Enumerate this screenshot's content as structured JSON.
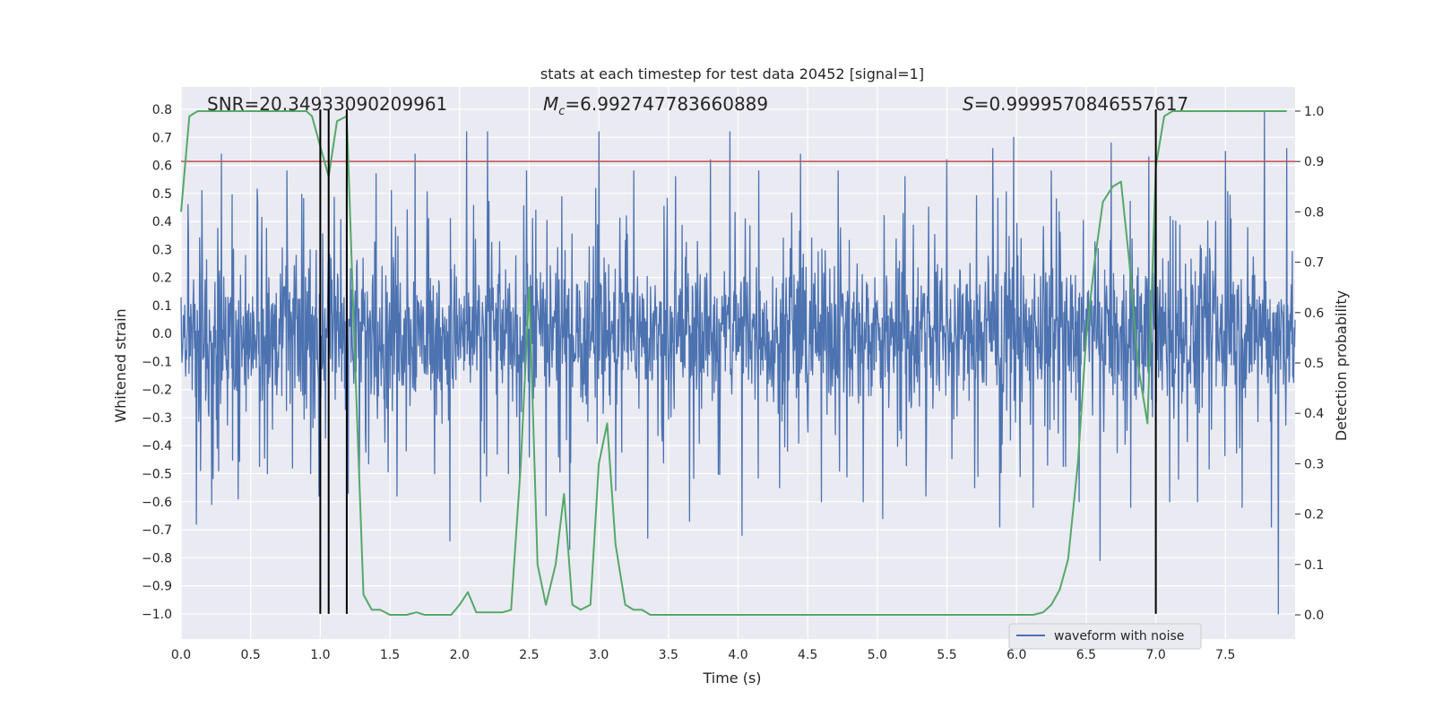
{
  "chart_data": {
    "type": "line",
    "title": "stats at each timestep for test data 20452 [signal=1]",
    "xlabel": "Time (s)",
    "ylabel": "Whitened strain",
    "y2label": "Detection probability",
    "xlim": [
      0.0,
      8.0
    ],
    "ylim": [
      -1.09,
      0.88
    ],
    "y2lim": [
      -0.048,
      1.048
    ],
    "xticks": [
      0.0,
      0.5,
      1.0,
      1.5,
      2.0,
      2.5,
      3.0,
      3.5,
      4.0,
      4.5,
      5.0,
      5.5,
      6.0,
      6.5,
      7.0,
      7.5
    ],
    "yticks": [
      0.8,
      0.7,
      0.6,
      0.5,
      0.4,
      0.3,
      0.2,
      0.1,
      0.0,
      -0.1,
      -0.2,
      -0.3,
      -0.4,
      -0.5,
      -0.6,
      -0.7,
      -0.8,
      -0.9,
      -1.0
    ],
    "y2ticks": [
      1.0,
      0.9,
      0.8,
      0.7,
      0.6,
      0.5,
      0.4,
      0.3,
      0.2,
      0.1,
      0.0
    ],
    "grid": true,
    "legend": {
      "position": "lower-right",
      "entries": [
        "waveform with noise"
      ]
    },
    "annotations": {
      "snr": "SNR=20.34933090209961",
      "mc_symbol": "M",
      "mc_sub": "c",
      "mc_value": "=6.992747783660889",
      "s_symbol": "S",
      "s_value": "=0.9999570846557617"
    },
    "threshold": {
      "y2": 0.9,
      "color": "#c44e52"
    },
    "vertical_lines": {
      "x": [
        1.0,
        1.06,
        1.19,
        7.0
      ],
      "ymin": -1.0,
      "ymax": 0.8,
      "color": "#000000"
    },
    "waveform": {
      "name": "waveform with noise",
      "color": "#4c72b0",
      "x_range": [
        0.0,
        8.0
      ],
      "typical_amplitude": 0.28,
      "spikes": [
        {
          "x": 0.05,
          "y": 0.46
        },
        {
          "x": 0.11,
          "y": -0.68
        },
        {
          "x": 0.15,
          "y": 0.51
        },
        {
          "x": 0.22,
          "y": -0.61
        },
        {
          "x": 0.29,
          "y": 0.64
        },
        {
          "x": 0.41,
          "y": -0.59
        },
        {
          "x": 0.55,
          "y": 0.47
        },
        {
          "x": 0.62,
          "y": -0.5
        },
        {
          "x": 0.76,
          "y": 0.58
        },
        {
          "x": 0.8,
          "y": -0.48
        },
        {
          "x": 0.93,
          "y": -0.5
        },
        {
          "x": 0.99,
          "y": -0.58
        },
        {
          "x": 1.2,
          "y": -0.57
        },
        {
          "x": 1.28,
          "y": -0.52
        },
        {
          "x": 1.4,
          "y": 0.57
        },
        {
          "x": 1.55,
          "y": -0.58
        },
        {
          "x": 1.68,
          "y": 0.64
        },
        {
          "x": 1.82,
          "y": -0.5
        },
        {
          "x": 1.93,
          "y": -0.74
        },
        {
          "x": 2.05,
          "y": 0.72
        },
        {
          "x": 2.15,
          "y": -0.6
        },
        {
          "x": 2.2,
          "y": 0.72
        },
        {
          "x": 2.35,
          "y": -0.5
        },
        {
          "x": 2.48,
          "y": 0.58
        },
        {
          "x": 2.62,
          "y": -0.65
        },
        {
          "x": 2.79,
          "y": -0.77
        },
        {
          "x": 3.0,
          "y": 0.72
        },
        {
          "x": 3.12,
          "y": -0.56
        },
        {
          "x": 3.25,
          "y": 0.58
        },
        {
          "x": 3.35,
          "y": -0.73
        },
        {
          "x": 3.55,
          "y": 0.56
        },
        {
          "x": 3.65,
          "y": -0.67
        },
        {
          "x": 3.8,
          "y": 0.62
        },
        {
          "x": 3.94,
          "y": 0.72
        },
        {
          "x": 4.03,
          "y": -0.72
        },
        {
          "x": 4.15,
          "y": 0.58
        },
        {
          "x": 4.3,
          "y": -0.55
        },
        {
          "x": 4.45,
          "y": 0.64
        },
        {
          "x": 4.6,
          "y": -0.6
        },
        {
          "x": 4.72,
          "y": 0.58
        },
        {
          "x": 4.9,
          "y": -0.6
        },
        {
          "x": 5.04,
          "y": -0.66
        },
        {
          "x": 5.2,
          "y": 0.56
        },
        {
          "x": 5.35,
          "y": -0.58
        },
        {
          "x": 5.5,
          "y": 0.62
        },
        {
          "x": 5.7,
          "y": -0.55
        },
        {
          "x": 5.83,
          "y": 0.66
        },
        {
          "x": 5.88,
          "y": -0.69
        },
        {
          "x": 5.98,
          "y": 0.7
        },
        {
          "x": 6.12,
          "y": -0.62
        },
        {
          "x": 6.25,
          "y": 0.58
        },
        {
          "x": 6.45,
          "y": -0.6
        },
        {
          "x": 6.6,
          "y": -0.81
        },
        {
          "x": 6.68,
          "y": 0.68
        },
        {
          "x": 6.82,
          "y": -0.62
        },
        {
          "x": 6.95,
          "y": 0.63
        },
        {
          "x": 7.1,
          "y": -0.6
        },
        {
          "x": 7.3,
          "y": -0.6
        },
        {
          "x": 7.5,
          "y": 0.65
        },
        {
          "x": 7.62,
          "y": -0.62
        },
        {
          "x": 7.78,
          "y": 0.79
        },
        {
          "x": 7.83,
          "y": -0.69
        },
        {
          "x": 7.88,
          "y": -1.0
        },
        {
          "x": 7.94,
          "y": 0.66
        }
      ]
    },
    "probability": {
      "color": "#55a868",
      "x": [
        0.0,
        0.06,
        0.12,
        0.2,
        0.3,
        0.4,
        0.5,
        0.6,
        0.7,
        0.8,
        0.9,
        0.94,
        1.0,
        1.06,
        1.12,
        1.19,
        1.25,
        1.31,
        1.37,
        1.43,
        1.5,
        1.56,
        1.62,
        1.69,
        1.75,
        1.81,
        1.87,
        1.94,
        2.0,
        2.06,
        2.12,
        2.19,
        2.25,
        2.31,
        2.37,
        2.44,
        2.5,
        2.56,
        2.62,
        2.69,
        2.75,
        2.81,
        2.87,
        2.94,
        3.0,
        3.06,
        3.12,
        3.19,
        3.25,
        3.31,
        3.37,
        3.44,
        3.5,
        4.0,
        4.5,
        5.0,
        5.5,
        6.0,
        6.12,
        6.19,
        6.25,
        6.31,
        6.37,
        6.44,
        6.5,
        6.56,
        6.62,
        6.69,
        6.75,
        6.81,
        6.87,
        6.94,
        7.0,
        7.06,
        7.12,
        7.19,
        7.25,
        7.5,
        7.94
      ],
      "y": [
        0.8,
        0.99,
        1.0,
        1.0,
        1.0,
        1.0,
        1.0,
        1.0,
        1.0,
        1.0,
        1.0,
        0.99,
        0.93,
        0.87,
        0.98,
        0.99,
        0.5,
        0.04,
        0.01,
        0.01,
        0.0,
        0.0,
        0.0,
        0.005,
        0.0,
        0.0,
        0.0,
        0.0,
        0.02,
        0.045,
        0.005,
        0.005,
        0.005,
        0.005,
        0.01,
        0.3,
        0.65,
        0.1,
        0.02,
        0.1,
        0.24,
        0.02,
        0.01,
        0.02,
        0.3,
        0.38,
        0.14,
        0.02,
        0.01,
        0.01,
        0.0,
        0.0,
        0.0,
        0.0,
        0.0,
        0.0,
        0.0,
        0.0,
        0.0,
        0.005,
        0.02,
        0.05,
        0.11,
        0.3,
        0.55,
        0.7,
        0.82,
        0.85,
        0.86,
        0.7,
        0.5,
        0.38,
        0.89,
        0.99,
        1.0,
        1.0,
        1.0,
        1.0,
        1.0
      ]
    }
  }
}
